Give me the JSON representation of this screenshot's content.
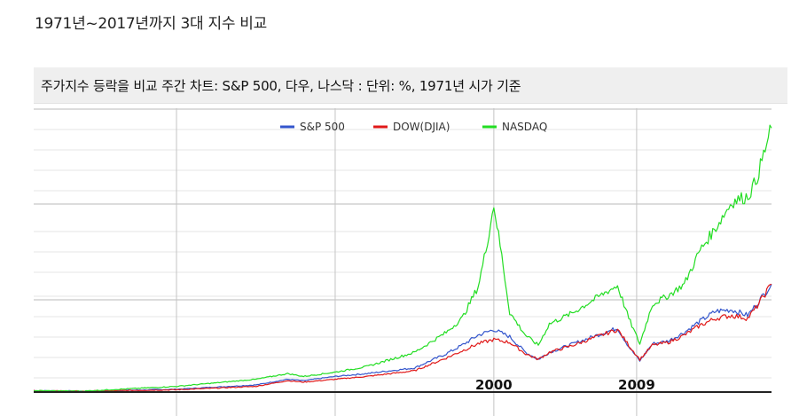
{
  "page": {
    "heading": "1971년~2017년까지 3대 지수 비교"
  },
  "chart_data": {
    "type": "line",
    "title": "주가지수 등락을 비교 주간 차트: S&P 500, 다우, 나스닥 : 단위: %, 1971년 시가 기준",
    "xlabel": "",
    "ylabel": "",
    "xlim": [
      1971,
      2017.5
    ],
    "ylim": [
      0,
      100
    ],
    "x_ticks": [
      {
        "label": "",
        "x": 1980
      },
      {
        "label": "",
        "x": 1990
      },
      {
        "label": "2000",
        "x": 2000
      },
      {
        "label": "2009",
        "x": 2009
      }
    ],
    "grid": true,
    "legend": "top-center",
    "series": [
      {
        "name": "S&P 500",
        "color": "#3355cc",
        "x": [
          1971,
          1974,
          1980,
          1985,
          1987,
          1988,
          1990,
          1992,
          1995,
          1997,
          1998,
          1999,
          2000,
          2001,
          2002,
          2002.8,
          2003.5,
          2005,
          2007,
          2007.8,
          2008.5,
          2009.2,
          2010,
          2011,
          2012,
          2013,
          2014,
          2015,
          2016,
          2016.5,
          2017.5
        ],
        "y": [
          0.5,
          0.3,
          1.0,
          2.5,
          4.5,
          4.0,
          5.5,
          6.5,
          8.5,
          13.5,
          16.5,
          20.0,
          22.0,
          19.5,
          14.0,
          11.5,
          14.0,
          17.0,
          21.0,
          22.5,
          16.0,
          11.0,
          17.0,
          18.0,
          21.0,
          25.0,
          28.5,
          29.0,
          27.0,
          30.5,
          38.0
        ]
      },
      {
        "name": "DOW(DJIA)",
        "color": "#e01818",
        "x": [
          1971,
          1974,
          1980,
          1985,
          1987,
          1988,
          1990,
          1992,
          1995,
          1997,
          1998,
          1999,
          2000,
          2001,
          2002,
          2002.8,
          2003.5,
          2005,
          2007,
          2007.8,
          2008.5,
          2009.2,
          2010,
          2011,
          2012,
          2013,
          2014,
          2015,
          2016,
          2016.5,
          2017.5
        ],
        "y": [
          0.5,
          0.3,
          0.8,
          2.0,
          4.0,
          3.5,
          4.5,
          5.5,
          7.5,
          12.0,
          14.5,
          17.0,
          18.5,
          17.5,
          13.5,
          11.5,
          14.0,
          16.5,
          20.5,
          22.0,
          16.5,
          11.5,
          16.5,
          17.5,
          20.0,
          23.5,
          26.0,
          27.0,
          26.0,
          29.5,
          38.0
        ]
      },
      {
        "name": "NASDAQ",
        "color": "#22dd22",
        "x": [
          1971,
          1974,
          1980,
          1985,
          1987,
          1988,
          1990,
          1992,
          1995,
          1997,
          1998,
          1999,
          1999.5,
          2000,
          2000.5,
          2001,
          2002,
          2002.8,
          2003.5,
          2005,
          2007,
          2007.8,
          2008.5,
          2009.2,
          2010,
          2011,
          2012,
          2013,
          2014,
          2015,
          2016,
          2016.5,
          2017.5
        ],
        "y": [
          0.5,
          0.3,
          2.0,
          4.5,
          6.5,
          5.5,
          7.0,
          9.0,
          14.0,
          21.0,
          26.0,
          37.0,
          50.0,
          66.0,
          48.0,
          28.0,
          20.0,
          16.5,
          24.0,
          28.0,
          35.0,
          37.5,
          26.0,
          17.0,
          31.0,
          34.0,
          38.0,
          50.0,
          58.0,
          67.0,
          69.0,
          74.0,
          93.0
        ]
      }
    ]
  }
}
